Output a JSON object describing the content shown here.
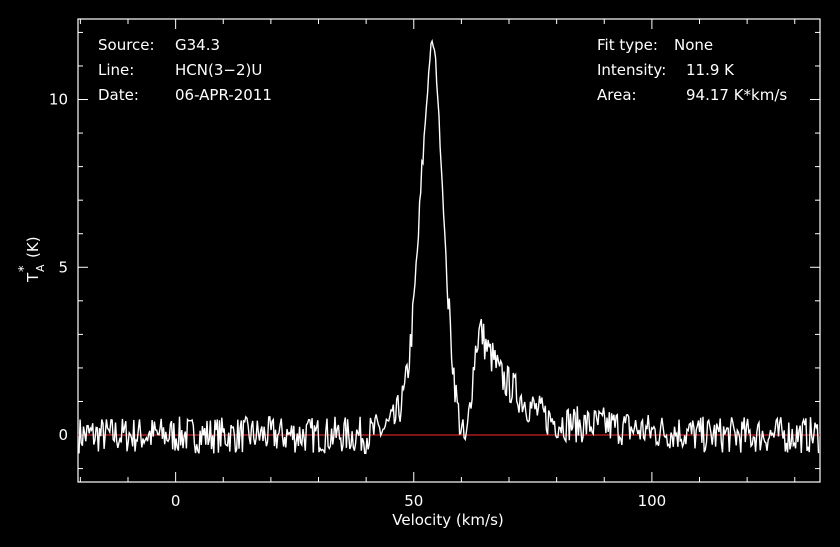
{
  "info": {
    "source_label": "Source:",
    "source_value": "G34.3",
    "line_label": "Line:",
    "line_value": "HCN(3−2)U",
    "date_label": "Date:",
    "date_value": "06-APR-2011",
    "fit_label": "Fit type:",
    "fit_value": "None",
    "intensity_label": "Intensity:",
    "intensity_value": "11.9 K",
    "area_label": "Area:",
    "area_value": "94.17 K*km/s"
  },
  "chart_data": {
    "type": "line",
    "xlabel": "Velocity (km/s)",
    "ylabel": "T",
    "ylabel_sub": "A",
    "ylabel_sup": "*",
    "ylabel_unit": "(K)",
    "xlim": [
      -20.5,
      135.3
    ],
    "ylim": [
      -1.4,
      12.4
    ],
    "x_ticks": [
      0,
      50,
      100
    ],
    "y_ticks": [
      0,
      5,
      10
    ],
    "baseline": 0,
    "baseline_color": "#cc2222",
    "line_color": "#ffffff",
    "series": [
      {
        "x": [
          -20,
          -15,
          -10,
          -5,
          0,
          5,
          10,
          15,
          20,
          25,
          30,
          35,
          40,
          44,
          46,
          47,
          48,
          49,
          50,
          51,
          52,
          53,
          53.5,
          54,
          54.5,
          55,
          56,
          57,
          58,
          59,
          60,
          61,
          62,
          63,
          64,
          65,
          66,
          67,
          68,
          70,
          72,
          74,
          76,
          78,
          80,
          85,
          90,
          95,
          100,
          105,
          110,
          115,
          120,
          125,
          130,
          135
        ],
        "y": [
          0,
          0,
          0,
          0,
          0,
          0,
          0,
          0,
          0,
          0,
          0,
          0,
          0,
          0.2,
          0.4,
          0.8,
          1.2,
          2.2,
          3.8,
          6.0,
          8.5,
          10.5,
          11.5,
          11.7,
          11.3,
          10.2,
          7.5,
          4.5,
          2.5,
          1.0,
          0.1,
          -0.3,
          1.2,
          2.6,
          3.2,
          2.7,
          2.4,
          2.2,
          1.8,
          1.5,
          1.2,
          0.9,
          0.7,
          0.5,
          0.4,
          0.3,
          0.3,
          0.2,
          0.1,
          0.1,
          0,
          0,
          0,
          0,
          0,
          0
        ]
      }
    ]
  }
}
